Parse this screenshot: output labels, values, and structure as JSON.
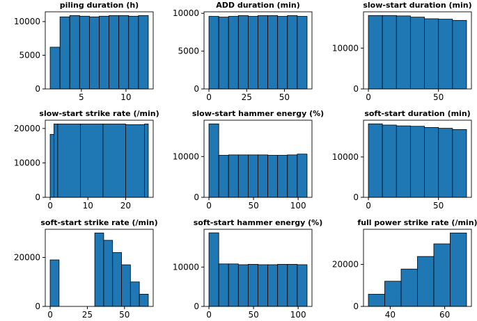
{
  "chart_data": [
    {
      "type": "histogram",
      "title": "piling duration (h)",
      "color": "#1f77b4",
      "bins": [
        1.5,
        2.6,
        3.7,
        4.8,
        5.9,
        7.0,
        8.1,
        9.2,
        10.3,
        11.4,
        12.5
      ],
      "values": [
        6200,
        10700,
        10900,
        10800,
        10700,
        10800,
        10900,
        10900,
        10800,
        10900
      ],
      "xlim": [
        0.95,
        13.05
      ],
      "xticks": [
        5,
        10
      ],
      "ylim": [
        0,
        11450
      ],
      "yticks": [
        0,
        5000,
        10000
      ]
    },
    {
      "type": "histogram",
      "title": "ADD duration (min)",
      "color": "#1f77b4",
      "bins": [
        0,
        6.5,
        13,
        19.5,
        26,
        32.5,
        39,
        45.5,
        52,
        58.5,
        65
      ],
      "values": [
        9600,
        9500,
        9600,
        9700,
        9600,
        9700,
        9700,
        9600,
        9700,
        9600
      ],
      "xlim": [
        -3.25,
        68.25
      ],
      "xticks": [
        0,
        25,
        50
      ],
      "ylim": [
        0,
        10200
      ],
      "yticks": [
        0,
        5000,
        10000
      ]
    },
    {
      "type": "histogram",
      "title": "slow-start duration (min)",
      "color": "#1f77b4",
      "bins": [
        0,
        10,
        20,
        30,
        40,
        50,
        60,
        70
      ],
      "values": [
        18000,
        18000,
        17900,
        17600,
        17200,
        17100,
        16800
      ],
      "xlim": [
        -3.5,
        73.5
      ],
      "xticks": [
        0,
        50
      ],
      "ylim": [
        0,
        18900
      ],
      "yticks": [
        0,
        10000
      ]
    },
    {
      "type": "histogram",
      "title": "slow-start strike rate (/min)",
      "color": "#1f77b4",
      "bins": [
        0,
        1,
        2,
        8,
        14,
        20,
        25,
        26
      ],
      "values": [
        18300,
        21300,
        21300,
        21300,
        21300,
        21100,
        21300
      ],
      "xlim": [
        -1.3,
        27.3
      ],
      "xticks": [
        0,
        10,
        20
      ],
      "ylim": [
        0,
        22400
      ],
      "yticks": [
        0,
        10000,
        20000
      ]
    },
    {
      "type": "histogram",
      "title": "slow-start hammer energy (%)",
      "color": "#1f77b4",
      "bins": [
        0,
        11,
        22,
        33,
        44,
        55,
        66,
        77,
        88,
        99,
        110
      ],
      "values": [
        18000,
        10300,
        10400,
        10400,
        10400,
        10400,
        10300,
        10300,
        10400,
        10600
      ],
      "xlim": [
        -5.5,
        115.5
      ],
      "xticks": [
        0,
        50,
        100
      ],
      "ylim": [
        0,
        18900
      ],
      "yticks": [
        0,
        10000
      ]
    },
    {
      "type": "histogram",
      "title": "soft-start duration (min)",
      "color": "#1f77b4",
      "bins": [
        0,
        10,
        20,
        30,
        40,
        50,
        60,
        70
      ],
      "values": [
        18200,
        17900,
        17700,
        17600,
        17300,
        17100,
        16800
      ],
      "xlim": [
        -3.5,
        73.5
      ],
      "xticks": [
        0,
        50
      ],
      "ylim": [
        0,
        19100
      ],
      "yticks": [
        0,
        10000
      ]
    },
    {
      "type": "histogram",
      "title": "soft-start strike rate (/min)",
      "color": "#1f77b4",
      "bins": [
        0,
        6,
        12,
        18,
        24,
        30,
        36,
        42,
        48,
        54,
        60,
        66
      ],
      "values": [
        19000,
        0,
        0,
        0,
        0,
        30000,
        27000,
        22000,
        17000,
        10000,
        5000
      ],
      "xlim": [
        -3.3,
        69.3
      ],
      "xticks": [
        0,
        25,
        50
      ],
      "ylim": [
        0,
        31500
      ],
      "yticks": [
        0,
        20000
      ]
    },
    {
      "type": "histogram",
      "title": "soft-start hammer energy (%)",
      "color": "#1f77b4",
      "bins": [
        0,
        11,
        22,
        33,
        44,
        55,
        66,
        77,
        88,
        99,
        110
      ],
      "values": [
        18700,
        10800,
        10800,
        10600,
        10700,
        10600,
        10600,
        10700,
        10700,
        10600
      ],
      "xlim": [
        -5.5,
        115.5
      ],
      "xticks": [
        0,
        50,
        100
      ],
      "ylim": [
        0,
        19600
      ],
      "yticks": [
        0,
        10000
      ]
    },
    {
      "type": "histogram",
      "title": "full power strike rate (/min)",
      "color": "#1f77b4",
      "bins": [
        32,
        38,
        44,
        50,
        56,
        62,
        68
      ],
      "values": [
        5800,
        12000,
        17800,
        23800,
        29800,
        35000
      ],
      "xlim": [
        30.2,
        69.8
      ],
      "xticks": [
        40,
        60
      ],
      "ylim": [
        0,
        36750
      ],
      "yticks": [
        0,
        20000
      ]
    }
  ]
}
